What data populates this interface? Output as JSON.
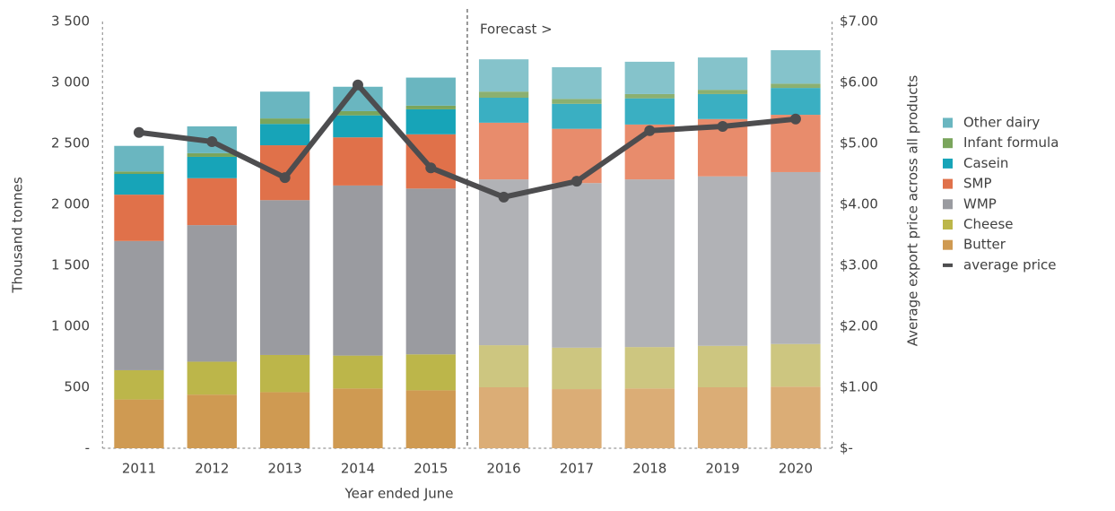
{
  "chart_data": {
    "type": "bar",
    "stacked": true,
    "categories": [
      "2011",
      "2012",
      "2013",
      "2014",
      "2015",
      "2016",
      "2017",
      "2018",
      "2019",
      "2020"
    ],
    "x_label": "Year ended June",
    "y_label": "Thousand tonnes",
    "y2_label": "Average export price across all products",
    "ylim": [
      0,
      3500
    ],
    "yticks": [
      {
        "value": 0,
        "label": "-"
      },
      500,
      {
        "value": 1000,
        "label": "1 000"
      },
      {
        "value": 1500,
        "label": "1 500"
      },
      {
        "value": 2000,
        "label": "2 000"
      },
      {
        "value": 2500,
        "label": "2 500"
      },
      {
        "value": 3000,
        "label": "3 000"
      },
      {
        "value": 3500,
        "label": "3 500"
      }
    ],
    "y2lim": [
      0,
      7
    ],
    "y2ticks": [
      {
        "value": 0,
        "label": "$-"
      },
      {
        "value": 1,
        "label": "$1.00"
      },
      {
        "value": 2,
        "label": "$2.00"
      },
      {
        "value": 3,
        "label": "$3.00"
      },
      {
        "value": 4,
        "label": "$4.00"
      },
      {
        "value": 5,
        "label": "$5.00"
      },
      {
        "value": 6,
        "label": "$6.00"
      },
      {
        "value": 7,
        "label": "$7.00"
      }
    ],
    "forecast": {
      "label": "Forecast >",
      "from": "2016"
    },
    "legend": "right",
    "series": [
      {
        "name": "Butter",
        "color": "#cf9a52",
        "forecast_color": "#dbad76",
        "values": [
          400,
          440,
          460,
          490,
          475,
          500,
          485,
          490,
          500,
          505
        ]
      },
      {
        "name": "Cheese",
        "color": "#bcb64a",
        "forecast_color": "#cdc680",
        "values": [
          240,
          270,
          305,
          270,
          295,
          345,
          340,
          340,
          340,
          350
        ]
      },
      {
        "name": "WMP",
        "color": "#9a9ba0",
        "forecast_color": "#b1b2b6",
        "values": [
          1060,
          1120,
          1270,
          1395,
          1360,
          1360,
          1350,
          1375,
          1390,
          1410
        ]
      },
      {
        "name": "SMP",
        "color": "#e0714a",
        "forecast_color": "#e88c6c",
        "values": [
          380,
          385,
          450,
          395,
          445,
          465,
          445,
          450,
          470,
          470
        ]
      },
      {
        "name": "Casein",
        "color": "#17a4b8",
        "forecast_color": "#3aafc2",
        "values": [
          170,
          175,
          175,
          180,
          205,
          205,
          205,
          215,
          205,
          220
        ]
      },
      {
        "name": "Infant formula",
        "color": "#7aa55c",
        "forecast_color": "#8bb070",
        "values": [
          20,
          30,
          45,
          35,
          30,
          50,
          40,
          35,
          35,
          35
        ]
      },
      {
        "name": "Other dairy",
        "color": "#6ab6c0",
        "forecast_color": "#85c3cb",
        "values": [
          210,
          220,
          220,
          200,
          230,
          265,
          260,
          265,
          265,
          275
        ]
      },
      {
        "name": "average price",
        "type": "line",
        "axis": "y2",
        "color": "#4d4d4f",
        "values": [
          5.18,
          5.03,
          4.44,
          5.96,
          4.6,
          4.12,
          4.38,
          5.21,
          5.28,
          5.4
        ]
      }
    ]
  }
}
